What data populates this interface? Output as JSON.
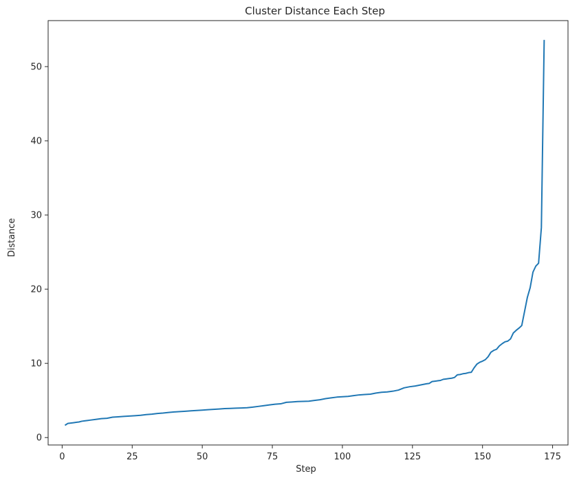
{
  "chart_data": {
    "type": "line",
    "title": "Cluster Distance Each Step",
    "xlabel": "Step",
    "ylabel": "Distance",
    "xlim": [
      -5,
      180.5
    ],
    "ylim": [
      -1,
      56.2
    ],
    "xticks": [
      0,
      25,
      50,
      75,
      100,
      125,
      150,
      175
    ],
    "yticks": [
      0,
      10,
      20,
      30,
      40,
      50
    ],
    "grid": false,
    "series": [
      {
        "color": "#1f77b4",
        "points": [
          [
            1,
            1.65
          ],
          [
            2,
            1.9
          ],
          [
            3,
            1.95
          ],
          [
            4,
            2.0
          ],
          [
            5,
            2.05
          ],
          [
            6,
            2.1
          ],
          [
            7,
            2.2
          ],
          [
            8,
            2.25
          ],
          [
            9,
            2.3
          ],
          [
            10,
            2.35
          ],
          [
            12,
            2.45
          ],
          [
            14,
            2.55
          ],
          [
            16,
            2.6
          ],
          [
            18,
            2.75
          ],
          [
            20,
            2.8
          ],
          [
            22,
            2.85
          ],
          [
            24,
            2.9
          ],
          [
            26,
            2.95
          ],
          [
            28,
            3.0
          ],
          [
            30,
            3.1
          ],
          [
            32,
            3.15
          ],
          [
            34,
            3.25
          ],
          [
            36,
            3.3
          ],
          [
            38,
            3.38
          ],
          [
            40,
            3.45
          ],
          [
            42,
            3.5
          ],
          [
            44,
            3.55
          ],
          [
            46,
            3.6
          ],
          [
            48,
            3.65
          ],
          [
            50,
            3.7
          ],
          [
            52,
            3.75
          ],
          [
            54,
            3.8
          ],
          [
            56,
            3.85
          ],
          [
            58,
            3.9
          ],
          [
            60,
            3.93
          ],
          [
            62,
            3.96
          ],
          [
            64,
            3.99
          ],
          [
            66,
            4.02
          ],
          [
            68,
            4.1
          ],
          [
            70,
            4.2
          ],
          [
            72,
            4.3
          ],
          [
            74,
            4.4
          ],
          [
            76,
            4.5
          ],
          [
            78,
            4.55
          ],
          [
            80,
            4.75
          ],
          [
            82,
            4.8
          ],
          [
            84,
            4.85
          ],
          [
            86,
            4.88
          ],
          [
            88,
            4.9
          ],
          [
            90,
            5.0
          ],
          [
            92,
            5.1
          ],
          [
            94,
            5.25
          ],
          [
            96,
            5.35
          ],
          [
            98,
            5.45
          ],
          [
            100,
            5.5
          ],
          [
            102,
            5.55
          ],
          [
            104,
            5.65
          ],
          [
            106,
            5.75
          ],
          [
            108,
            5.8
          ],
          [
            110,
            5.85
          ],
          [
            112,
            6.0
          ],
          [
            114,
            6.1
          ],
          [
            116,
            6.15
          ],
          [
            118,
            6.25
          ],
          [
            120,
            6.4
          ],
          [
            122,
            6.7
          ],
          [
            124,
            6.85
          ],
          [
            126,
            6.95
          ],
          [
            128,
            7.1
          ],
          [
            130,
            7.25
          ],
          [
            131,
            7.3
          ],
          [
            132,
            7.55
          ],
          [
            133,
            7.6
          ],
          [
            134,
            7.65
          ],
          [
            135,
            7.7
          ],
          [
            136,
            7.85
          ],
          [
            137,
            7.9
          ],
          [
            138,
            7.95
          ],
          [
            139,
            8.0
          ],
          [
            140,
            8.1
          ],
          [
            141,
            8.45
          ],
          [
            142,
            8.5
          ],
          [
            143,
            8.6
          ],
          [
            144,
            8.65
          ],
          [
            145,
            8.75
          ],
          [
            146,
            8.8
          ],
          [
            147,
            9.4
          ],
          [
            148,
            9.9
          ],
          [
            149,
            10.15
          ],
          [
            150,
            10.3
          ],
          [
            151,
            10.5
          ],
          [
            152,
            10.9
          ],
          [
            153,
            11.5
          ],
          [
            154,
            11.75
          ],
          [
            155,
            11.9
          ],
          [
            156,
            12.35
          ],
          [
            157,
            12.65
          ],
          [
            158,
            12.9
          ],
          [
            159,
            13.0
          ],
          [
            160,
            13.3
          ],
          [
            161,
            14.1
          ],
          [
            162,
            14.45
          ],
          [
            163,
            14.75
          ],
          [
            164,
            15.1
          ],
          [
            165,
            17.0
          ],
          [
            166,
            18.9
          ],
          [
            167,
            20.2
          ],
          [
            168,
            22.3
          ],
          [
            169,
            23.1
          ],
          [
            170,
            23.5
          ],
          [
            171,
            28.3
          ],
          [
            172,
            53.6
          ]
        ]
      }
    ]
  }
}
